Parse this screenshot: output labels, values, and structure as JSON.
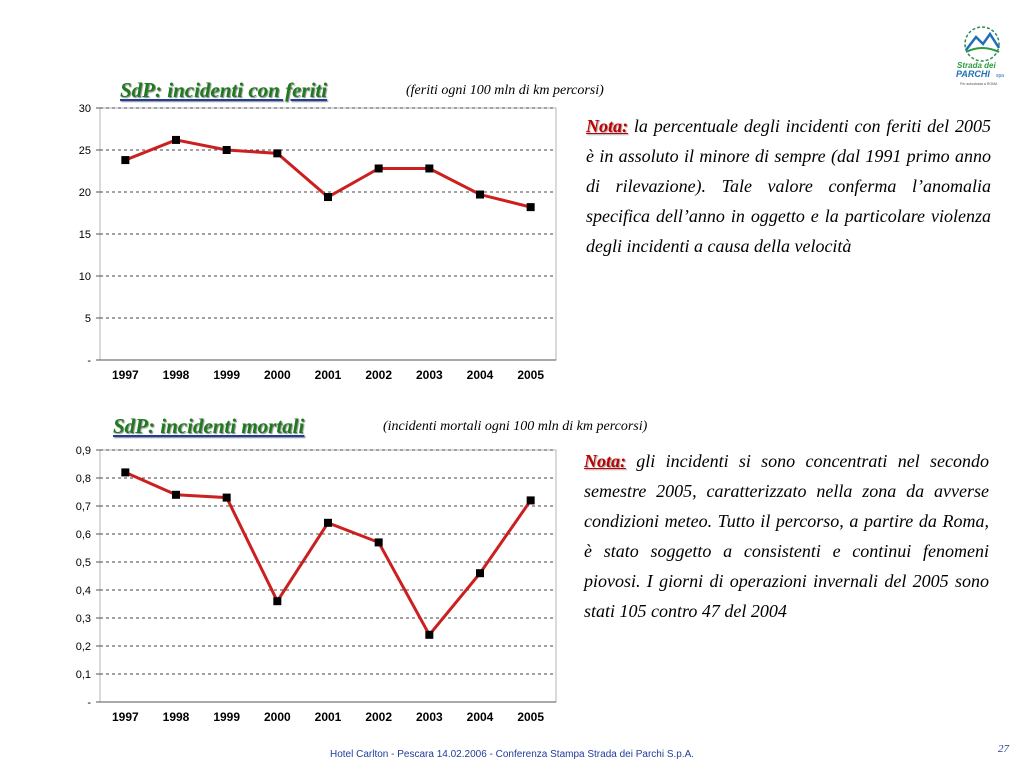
{
  "logo": {
    "line1": "Strada dei",
    "line2": "PARCHI",
    "suffix": "spa",
    "tagline": "Per autostrada a ROMA"
  },
  "section1": {
    "title": "SdP: incidenti con feriti",
    "subtitle": "(feriti ogni 100 mln di km percorsi)",
    "note_label": "Nota:",
    "note_text": " la percentuale degli incidenti con feriti del 2005 è in assoluto il minore di sempre (dal 1991 primo anno di rilevazione). Tale valore conferma l’anomalia specifica dell’anno in oggetto e la particolare violenza degli incidenti a causa della velocità"
  },
  "section2": {
    "title": "SdP: incidenti mortali ",
    "subtitle": "(incidenti mortali ogni 100 mln di km percorsi)",
    "note_label": "Nota:",
    "note_text": " gli incidenti si sono concentrati nel secondo semestre 2005, caratterizzato nella zona da avverse condizioni meteo. Tutto il percorso, a partire da Roma, è stato soggetto a consistenti e continui fenomeni piovosi. I giorni di operazioni invernali del 2005 sono stati 105 contro 47 del 2004"
  },
  "footer": "Hotel Carlton - Pescara 14.02.2006  - Conferenza Stampa Strada dei Parchi S.p.A.",
  "page_number": "27",
  "colors": {
    "line": "#cc1f1f",
    "marker": "#000000",
    "title_green": "#1f7a1f",
    "note_red": "#c00000",
    "footer_blue": "#1f3d9a"
  },
  "chart_data": [
    {
      "type": "line",
      "categories": [
        "1997",
        "1998",
        "1999",
        "2000",
        "2001",
        "2002",
        "2003",
        "2004",
        "2005"
      ],
      "values": [
        23.8,
        26.2,
        25.0,
        24.6,
        19.4,
        22.8,
        22.8,
        19.7,
        18.2
      ],
      "yticks": [
        "-",
        "5",
        "10",
        "15",
        "20",
        "25",
        "30"
      ],
      "ylim": [
        0,
        30
      ],
      "grid": "dashed horizontal",
      "legend": "none"
    },
    {
      "type": "line",
      "categories": [
        "1997",
        "1998",
        "1999",
        "2000",
        "2001",
        "2002",
        "2003",
        "2004",
        "2005"
      ],
      "values": [
        0.82,
        0.74,
        0.73,
        0.36,
        0.64,
        0.57,
        0.24,
        0.46,
        0.72
      ],
      "yticks": [
        "-",
        "0,1",
        "0,2",
        "0,3",
        "0,4",
        "0,5",
        "0,6",
        "0,7",
        "0,8",
        "0,9"
      ],
      "ylim": [
        0,
        0.9
      ],
      "grid": "dashed horizontal",
      "legend": "none"
    }
  ]
}
